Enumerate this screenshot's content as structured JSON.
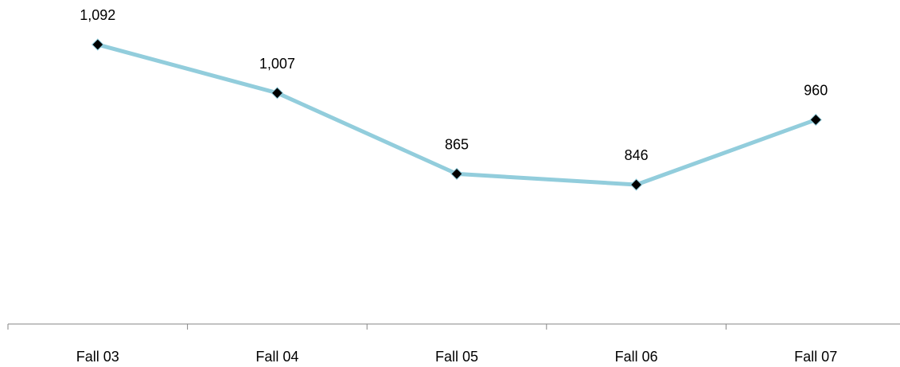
{
  "chart_data": {
    "type": "line",
    "categories": [
      "Fall 03",
      "Fall 04",
      "Fall 05",
      "Fall 06",
      "Fall 07"
    ],
    "series": [
      {
        "values": [
          1092,
          1007,
          865,
          846,
          960
        ],
        "data_labels": [
          "1,092",
          "1,007",
          "865",
          "846",
          "960"
        ]
      }
    ],
    "title": "",
    "xlabel": "",
    "ylabel": "",
    "ylim": [
      600,
      1150
    ],
    "grid": false,
    "legend": "none",
    "colors": {
      "line": "#92CDDC",
      "marker": "#000000",
      "axis": "#868686"
    }
  }
}
